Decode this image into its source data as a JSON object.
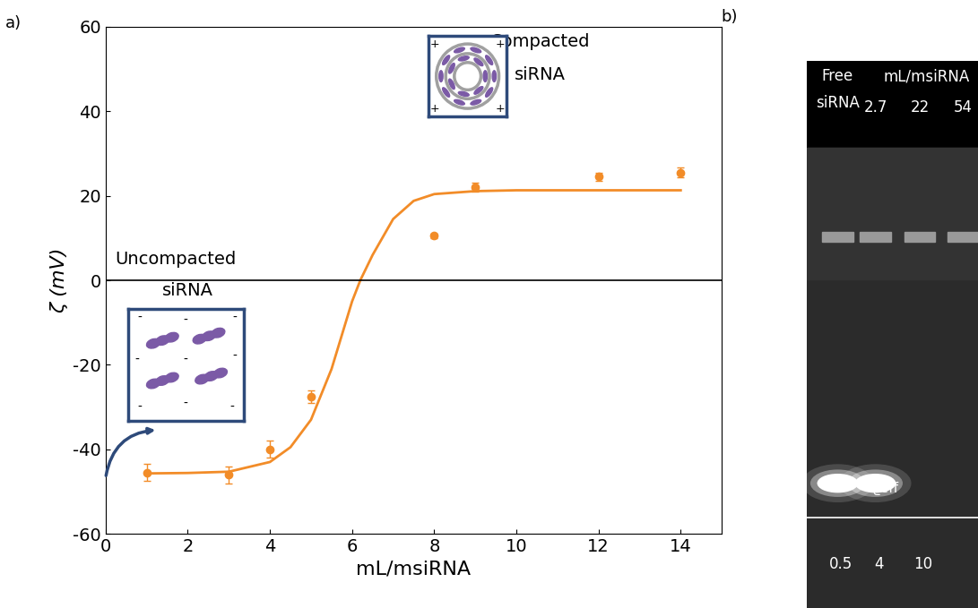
{
  "chart_data": {
    "type": "scatter",
    "panel_label": "a)",
    "x_label": "mL/msiRNA",
    "y_label": "ζ (mV)",
    "x": [
      1,
      3,
      4,
      5,
      8,
      9,
      12,
      14
    ],
    "values": [
      -45.5,
      -46,
      -40,
      -27.5,
      10.5,
      22,
      24.5,
      25.5
    ],
    "errors": [
      2,
      2,
      2,
      1.5,
      0.6,
      1,
      1,
      1.2
    ],
    "color": "#f28c28",
    "marker": "o",
    "fit": {
      "x": [
        1,
        2,
        3,
        4,
        4.5,
        5,
        5.5,
        6,
        6.2,
        6.5,
        7,
        7.5,
        8,
        9,
        10,
        12,
        14
      ],
      "values": [
        -45.7,
        -45.6,
        -45.3,
        -43,
        -39.5,
        -33,
        -21,
        -5,
        0,
        6,
        14.5,
        18.8,
        20.4,
        21.1,
        21.3,
        21.3,
        21.3
      ],
      "line_style": "solid"
    },
    "xlim": [
      0,
      15
    ],
    "xticks": [
      0,
      2,
      4,
      6,
      8,
      10,
      12,
      14
    ],
    "ylim": [
      -60,
      60
    ],
    "yticks": [
      -60,
      -40,
      -20,
      0,
      20,
      40,
      60
    ],
    "zero_line": 0,
    "annotations": {
      "compacted": [
        "Compacted",
        "siRNA"
      ],
      "compacted_sign": "+",
      "uncompacted": [
        "Uncompacted",
        "siRNA"
      ],
      "uncompacted_sign": "-"
    }
  },
  "gel": {
    "panel_label": "b)",
    "free_label": [
      "Free",
      "siRNA"
    ],
    "ratio_label": "mL/msiRNA",
    "ratios": [
      2.7,
      22,
      54
    ],
    "rho_label": "ϱeff",
    "rho_values": [
      0.5,
      4,
      10
    ],
    "band": [
      true,
      true,
      false,
      false
    ]
  }
}
